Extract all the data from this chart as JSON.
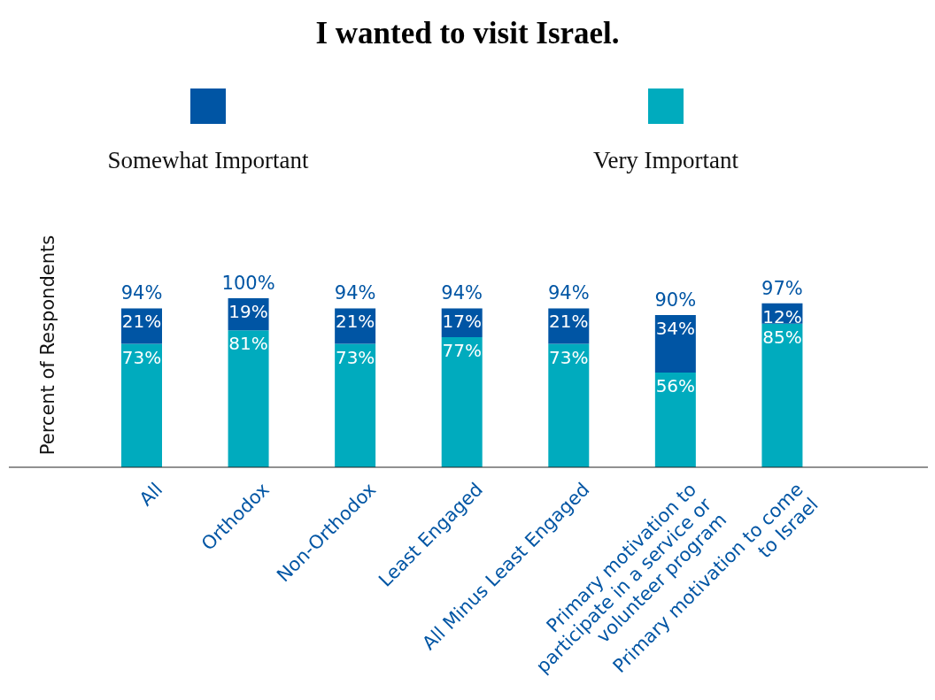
{
  "chart_data": {
    "type": "bar",
    "title": "I wanted to visit Israel.",
    "ylabel": "Percent of Respondents",
    "categories": [
      "All",
      "Orthodox",
      "Non-Orthodox",
      "Least Engaged",
      "All Minus Least Engaged",
      "Primary motivation to participate in a service or volunteer program",
      "Primary motivation to come to Israel"
    ],
    "stacked": true,
    "legend": "top",
    "grid": false,
    "series": [
      {
        "name": "Very Important",
        "color": "#00abbe",
        "values": [
          73,
          81,
          73,
          77,
          73,
          56,
          85
        ],
        "value_labels": [
          "73%",
          "81%",
          "73%",
          "77%",
          "73%",
          "56%",
          "85%"
        ]
      },
      {
        "name": "Somewhat Important",
        "color": "#0055a4",
        "values": [
          21,
          19,
          21,
          17,
          21,
          34,
          12
        ],
        "value_labels": [
          "21%",
          "19%",
          "21%",
          "17%",
          "21%",
          "34%",
          "12%"
        ]
      }
    ],
    "totals": [
      "94%",
      "100%",
      "94%",
      "94%",
      "94%",
      "90%",
      "97%"
    ]
  }
}
